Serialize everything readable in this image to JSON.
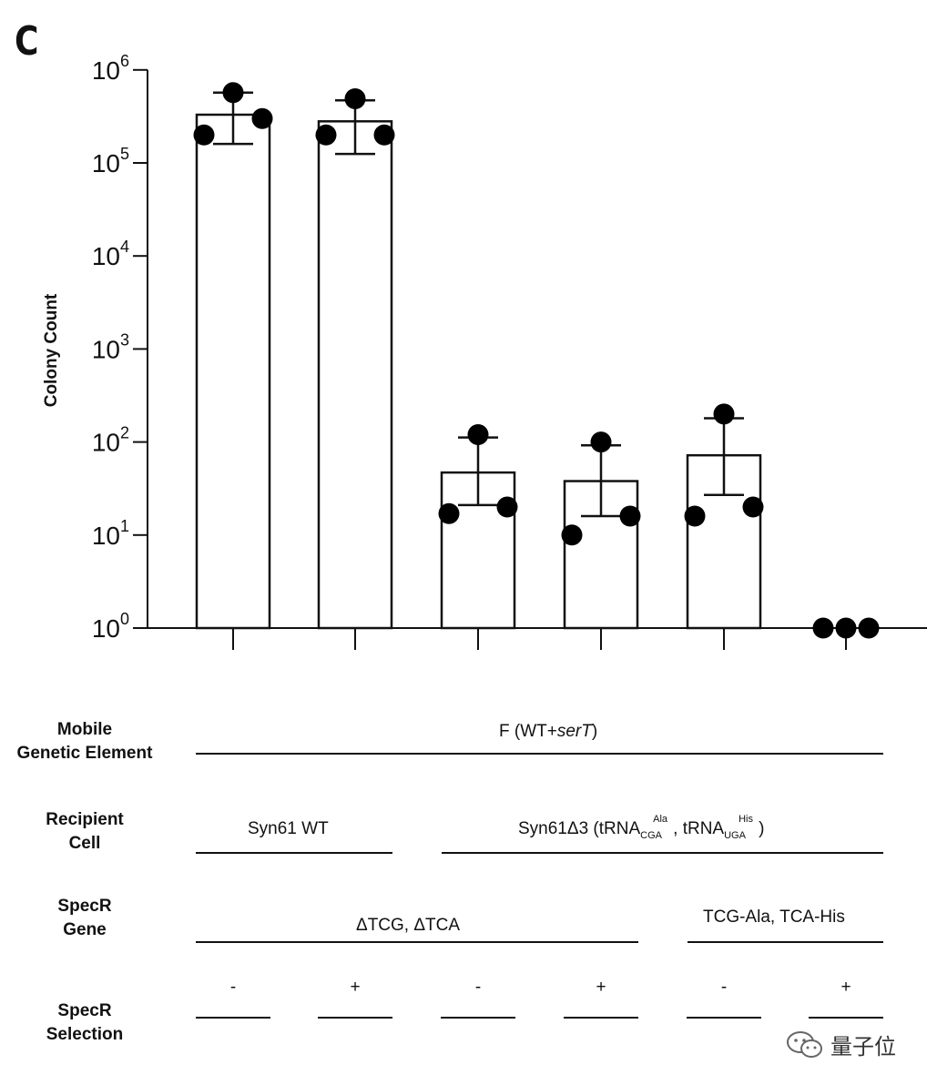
{
  "panel_label": "C",
  "chart_data": {
    "type": "bar",
    "ylabel": "Colony Count",
    "yscale": "log",
    "ylim": [
      1,
      1000000
    ],
    "yticks": [
      {
        "value": 1,
        "base": "10",
        "exp": "0"
      },
      {
        "value": 10,
        "base": "10",
        "exp": "1"
      },
      {
        "value": 100,
        "base": "10",
        "exp": "2"
      },
      {
        "value": 1000,
        "base": "10",
        "exp": "3"
      },
      {
        "value": 10000,
        "base": "10",
        "exp": "4"
      },
      {
        "value": 100000,
        "base": "10",
        "exp": "5"
      },
      {
        "value": 1000000,
        "base": "10",
        "exp": "6"
      }
    ],
    "bars": [
      {
        "mean": 330000,
        "err_low": 160000,
        "err_high": 570000,
        "points": [
          200000,
          570000,
          300000
        ]
      },
      {
        "mean": 280000,
        "err_low": 125000,
        "err_high": 470000,
        "points": [
          200000,
          490000,
          200000
        ]
      },
      {
        "mean": 47,
        "err_low": 21,
        "err_high": 112,
        "points": [
          17,
          120,
          20
        ]
      },
      {
        "mean": 38,
        "err_low": 16,
        "err_high": 92,
        "points": [
          10,
          100,
          16
        ]
      },
      {
        "mean": 72,
        "err_low": 27,
        "err_high": 180,
        "points": [
          16,
          200,
          20
        ]
      },
      {
        "mean": 1,
        "err_low": 1,
        "err_high": 1,
        "points": [
          1,
          1,
          1
        ]
      }
    ],
    "colors": {
      "bar_fill": "#ffffff",
      "bar_stroke": "#111111",
      "point": "#000000"
    }
  },
  "conditions": {
    "mobile_element": {
      "label_line1": "Mobile",
      "label_line2": "Genetic Element",
      "value_pre": "F (WT+",
      "value_em": "serT",
      "value_post": ")"
    },
    "recipient": {
      "label_line1": "Recipient",
      "label_line2": "Cell",
      "group1": "Syn61 WT",
      "group2_pre": "Syn61Δ3 (tRNA",
      "group2_sub1": "CGA",
      "group2_sup1": "Ala",
      "group2_mid": ", tRNA",
      "group2_sub2": "UGA",
      "group2_sup2": "His",
      "group2_post": ")"
    },
    "specr_gene": {
      "label_line1": "SpecR",
      "label_line2": "Gene",
      "group1": "ΔTCG, ΔTCA",
      "group2": "TCG-Ala, TCA-His"
    },
    "specr_selection": {
      "label_line1": "SpecR",
      "label_line2": "Selection",
      "signs": [
        "-",
        "+",
        "-",
        "+",
        "-",
        "+"
      ]
    }
  },
  "watermark": {
    "text": "量子位",
    "icon": "wechat-icon"
  }
}
